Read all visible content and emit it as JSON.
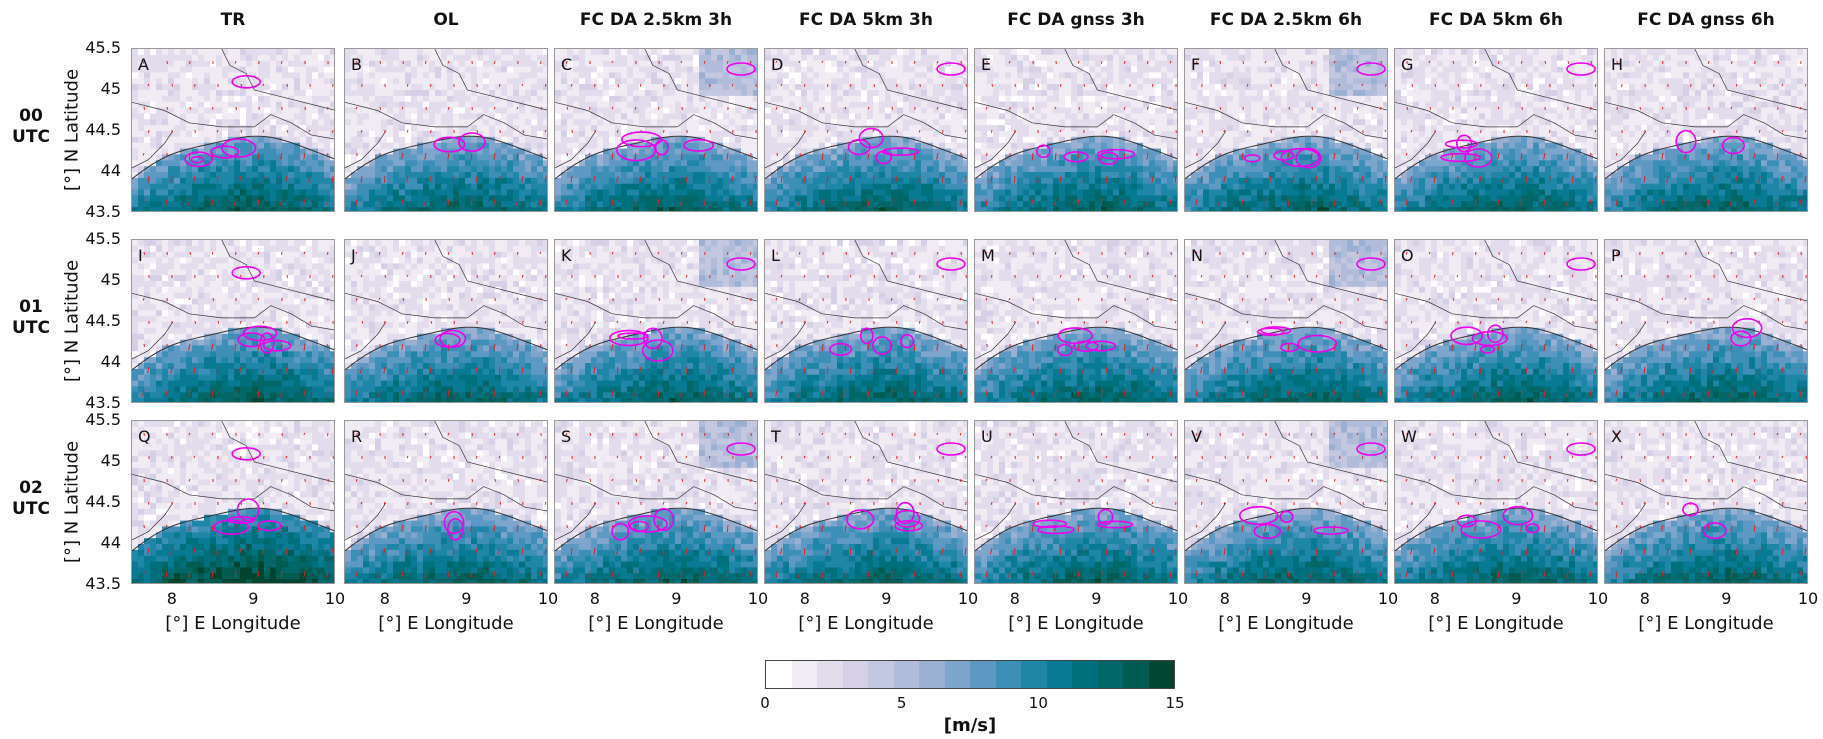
{
  "chart_data": {
    "type": "heatmap",
    "columns": [
      "TR",
      "OL",
      "FC DA 2.5km 3h",
      "FC DA 5km 3h",
      "FC DA gnss 3h",
      "FC DA 2.5km 6h",
      "FC DA 5km 6h",
      "FC DA gnss 6h"
    ],
    "rows": [
      [
        "00",
        "UTC"
      ],
      [
        "01",
        "UTC"
      ],
      [
        "02",
        "UTC"
      ]
    ],
    "panel_labels": [
      "A",
      "B",
      "C",
      "D",
      "E",
      "F",
      "G",
      "H",
      "I",
      "J",
      "K",
      "L",
      "M",
      "N",
      "O",
      "P",
      "Q",
      "R",
      "S",
      "T",
      "U",
      "V",
      "W",
      "X"
    ],
    "xlabel": "[°] E Longitude",
    "ylabel": "[°] N Latitude",
    "xlim": [
      7.5,
      10
    ],
    "ylim": [
      43.5,
      45.5
    ],
    "xticks": [
      "8",
      "9",
      "10"
    ],
    "yticks": [
      "45.5",
      "45",
      "44.5",
      "44",
      "43.5"
    ],
    "colorbar": {
      "label": "[m/s]",
      "range": [
        0,
        15
      ],
      "ticks": [
        "0",
        "5",
        "10",
        "15"
      ],
      "colors": [
        "#ffffff",
        "#f1ebf4",
        "#e3dced",
        "#d5d0e6",
        "#c4c7e0",
        "#b0bcda",
        "#9ab0d3",
        "#7ea5cc",
        "#5e99c3",
        "#3d8fb8",
        "#1f86a8",
        "#097a93",
        "#00707d",
        "#036667",
        "#005b51",
        "#00452f"
      ]
    },
    "contour_color": "#ee00ee",
    "vector_color": "#dd2222",
    "coastline_color": "#333333"
  }
}
